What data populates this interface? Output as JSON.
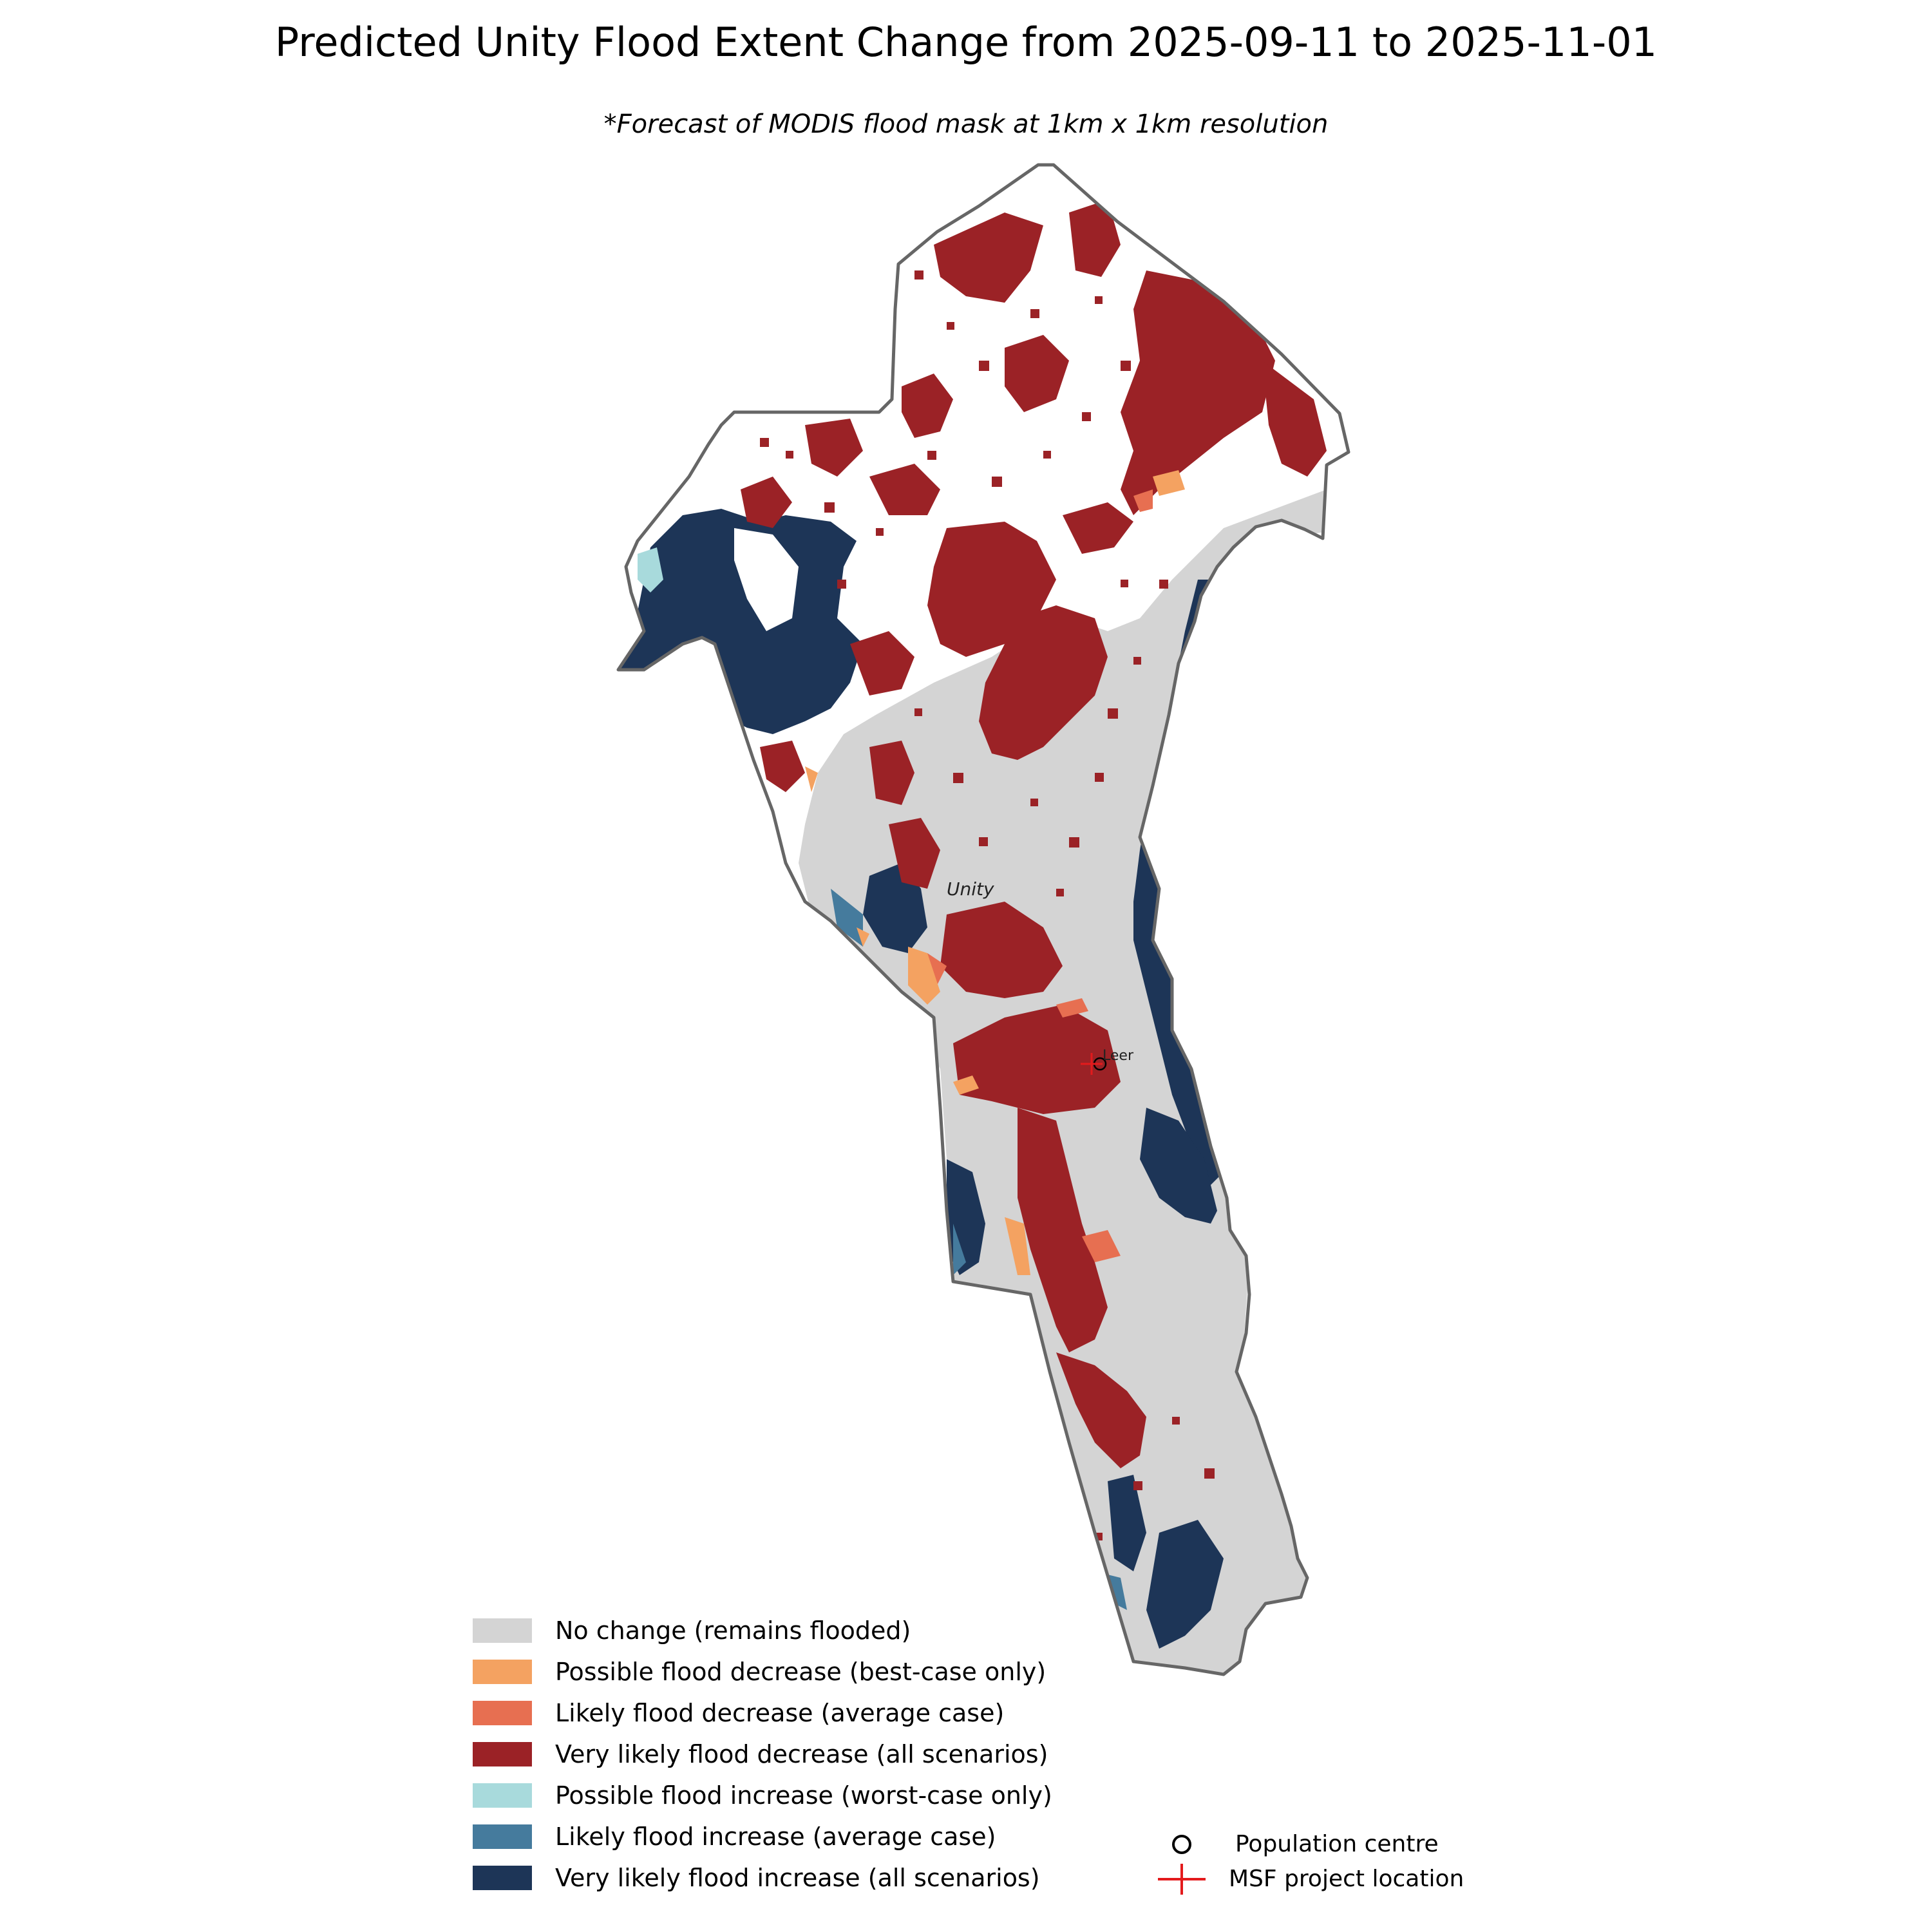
{
  "title": "Predicted Unity Flood Extent Change from 2025-09-11 to 2025-11-01",
  "subtitle": "*Forecast of MODIS flood mask at 1km x 1km resolution",
  "map": {
    "place_labels": [
      {
        "name": "Unity"
      },
      {
        "name": "Leer"
      }
    ],
    "boundary_color": "#666666"
  },
  "legend": {
    "categories": [
      {
        "key": "no_change",
        "label": "No change (remains flooded)",
        "color": "#d4d4d4"
      },
      {
        "key": "possible_decrease",
        "label": "Possible flood decrease (best-case only)",
        "color": "#f4a261"
      },
      {
        "key": "likely_decrease",
        "label": "Likely flood decrease (average case)",
        "color": "#e76f51"
      },
      {
        "key": "very_likely_decrease",
        "label": "Very likely flood decrease (all scenarios)",
        "color": "#9b2226"
      },
      {
        "key": "possible_increase",
        "label": "Possible flood increase (worst-case only)",
        "color": "#a8dadc"
      },
      {
        "key": "likely_increase",
        "label": "Likely flood increase (average case)",
        "color": "#457b9d"
      },
      {
        "key": "very_likely_increase",
        "label": "Very likely flood increase (all scenarios)",
        "color": "#1d3557"
      }
    ],
    "markers": [
      {
        "key": "population_centre",
        "label": "Population centre",
        "icon": "circle-outline-icon"
      },
      {
        "key": "msf_project",
        "label": "MSF project location",
        "icon": "red-cross-icon",
        "color": "#e31a1c"
      }
    ]
  }
}
